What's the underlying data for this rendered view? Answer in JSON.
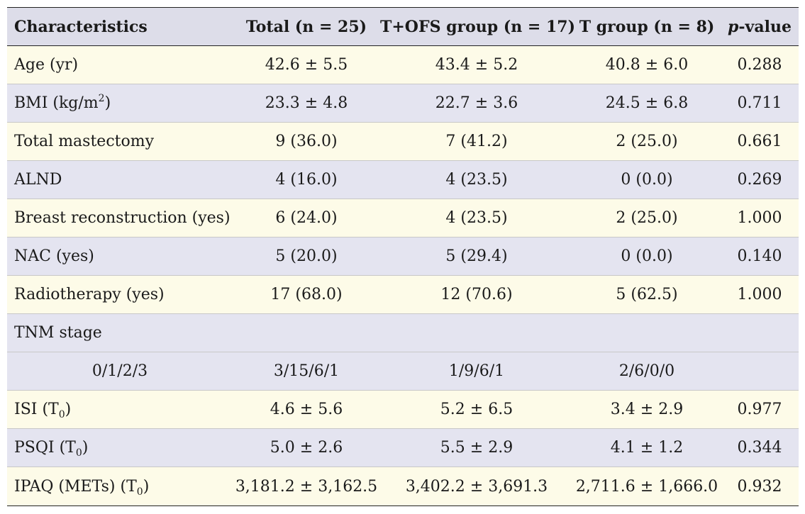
{
  "header": {
    "characteristics": "Characteristics",
    "total": "Total (n = 25)",
    "tofs": "T+OFS group (n = 17)",
    "t": "T group (n = 8)",
    "p_italic": "p",
    "p_rest": "-value"
  },
  "rows": [
    {
      "label": "Age (yr)",
      "total": "42.6 ± 5.5",
      "tofs": "43.4 ± 5.2",
      "t": "40.8 ± 6.0",
      "p": "0.288"
    },
    {
      "label_pre": "BMI (kg/m",
      "label_sup": "2",
      "label_post": ")",
      "total": "23.3 ± 4.8",
      "tofs": "22.7 ± 3.6",
      "t": "24.5 ± 6.8",
      "p": "0.711"
    },
    {
      "label": "Total mastectomy",
      "total": "9 (36.0)",
      "tofs": "7 (41.2)",
      "t": "2 (25.0)",
      "p": "0.661"
    },
    {
      "label": "ALND",
      "total": "4 (16.0)",
      "tofs": "4 (23.5)",
      "t": "0 (0.0)",
      "p": "0.269"
    },
    {
      "label": "Breast reconstruction (yes)",
      "total": "6 (24.0)",
      "tofs": "4 (23.5)",
      "t": "2 (25.0)",
      "p": "1.000"
    },
    {
      "label": "NAC (yes)",
      "total": "5 (20.0)",
      "tofs": "5 (29.4)",
      "t": "0 (0.0)",
      "p": "0.140"
    },
    {
      "label": "Radiotherapy (yes)",
      "total": "17 (68.0)",
      "tofs": "12 (70.6)",
      "t": "5 (62.5)",
      "p": "1.000"
    },
    {
      "label": "TNM stage"
    },
    {
      "label": "0/1/2/3",
      "total": "3/15/6/1",
      "tofs": "1/9/6/1",
      "t": "2/6/0/0"
    },
    {
      "label_pre": "ISI (T",
      "label_sub": "0",
      "label_post": ")",
      "total": "4.6 ± 5.6",
      "tofs": "5.2 ± 6.5",
      "t": "3.4 ± 2.9",
      "p": "0.977"
    },
    {
      "label_pre": "PSQI (T",
      "label_sub": "0",
      "label_post": ")",
      "total": "5.0 ± 2.6",
      "tofs": "5.5 ± 2.9",
      "t": "4.1 ± 1.2",
      "p": "0.344"
    },
    {
      "label_pre": "IPAQ (METs) (T",
      "label_sub": "0",
      "label_post": ")",
      "total": "3,181.2 ± 3,162.5",
      "tofs": "3,402.2 ± 3,691.3",
      "t": "2,711.6 ± 1,666.0",
      "p": "0.932"
    }
  ]
}
